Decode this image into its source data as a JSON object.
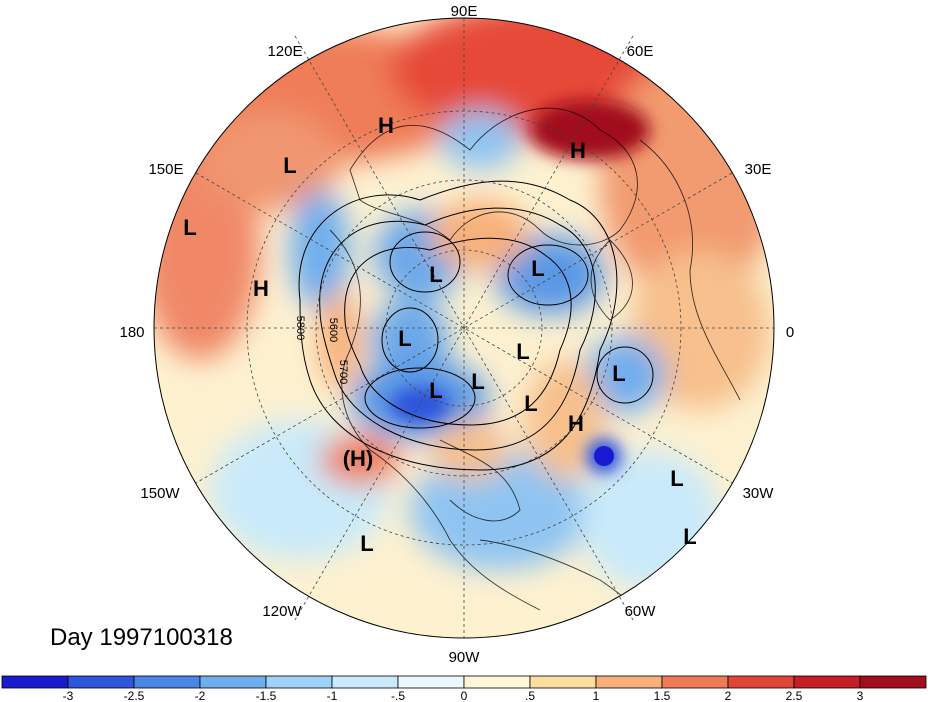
{
  "title": "Day 1997100318",
  "longitude_labels": [
    "90E",
    "60E",
    "30E",
    "0",
    "30W",
    "60W",
    "90W",
    "120W",
    "150W",
    "180",
    "150E",
    "120E"
  ],
  "contour_labels": [
    "5800",
    "5600",
    "5700"
  ],
  "pressure_centers": [
    {
      "type": "H",
      "display": "H"
    },
    {
      "type": "H",
      "display": "H"
    },
    {
      "type": "L",
      "display": "L"
    },
    {
      "type": "L",
      "display": "L"
    },
    {
      "type": "H",
      "display": "H"
    },
    {
      "type": "L",
      "display": "L"
    },
    {
      "type": "L",
      "display": "L"
    },
    {
      "type": "L",
      "display": "L"
    },
    {
      "type": "L",
      "display": "L"
    },
    {
      "type": "L",
      "display": "L"
    },
    {
      "type": "L",
      "display": "L"
    },
    {
      "type": "L",
      "display": "L"
    },
    {
      "type": "L",
      "display": "L"
    },
    {
      "type": "H",
      "display": "H"
    },
    {
      "type": "H",
      "display": "(H)"
    },
    {
      "type": "L",
      "display": "L"
    },
    {
      "type": "L",
      "display": "L"
    },
    {
      "type": "L",
      "display": "L"
    }
  ],
  "colorbar": {
    "ticks": [
      "-3",
      "-2.5",
      "-2",
      "-1.5",
      "-1",
      "-.5",
      "0",
      ".5",
      "1",
      "1.5",
      "2",
      "2.5",
      "3"
    ],
    "colors": [
      "#1a1ad0",
      "#2f55dc",
      "#4a86e4",
      "#6faeee",
      "#9ed2f6",
      "#c9eafa",
      "#eaf7fd",
      "#fdf6d8",
      "#fbdda0",
      "#f7b07a",
      "#f07a55",
      "#e24535",
      "#c61d26",
      "#a10e1e"
    ]
  },
  "colors": {
    "neg_strong": "#2f55dc",
    "neg_mid": "#6faeee",
    "neg_light": "#c9eafa",
    "pos_light": "#fdf6d8",
    "pos_mid": "#f7b07a",
    "pos_strong": "#e24535",
    "pos_max": "#a10e1e"
  }
}
